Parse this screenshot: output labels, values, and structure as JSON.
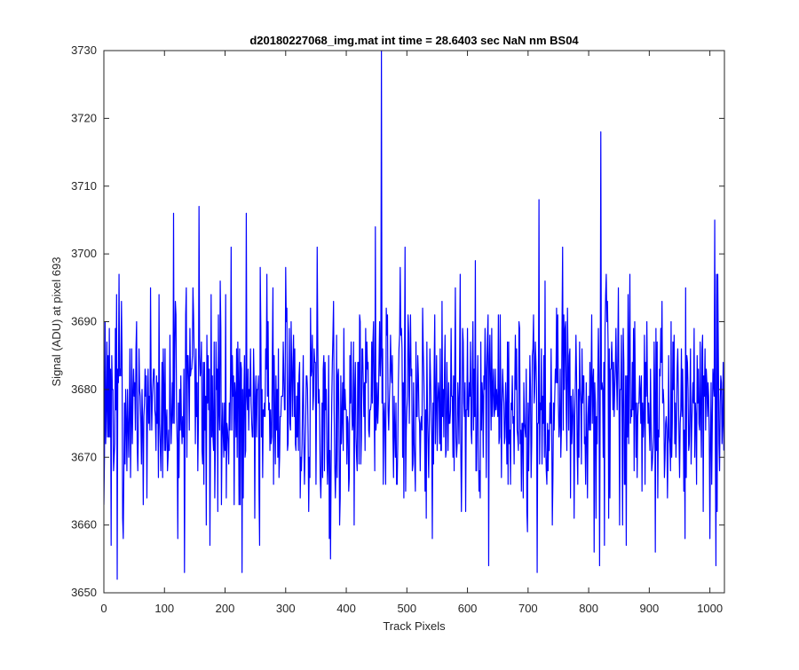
{
  "chart_data": {
    "type": "line",
    "title": "d20180227068_img.mat int time = 28.6403 sec  NaN nm BS04",
    "xlabel": "Track Pixels",
    "ylabel": "Signal (ADU) at pixel 693",
    "xlim": [
      0,
      1024
    ],
    "ylim": [
      3650,
      3730
    ],
    "xticks": [
      0,
      100,
      200,
      300,
      400,
      500,
      600,
      700,
      800,
      900,
      1000
    ],
    "yticks": [
      3650,
      3660,
      3670,
      3680,
      3690,
      3700,
      3710,
      3720,
      3730
    ],
    "grid": false,
    "series": [
      {
        "color": "#0000ff",
        "stats": {
          "n": 1024,
          "mean": 3678,
          "std": 8
        },
        "highlight_points": [
          [
            22,
            3652
          ],
          [
            25,
            3697
          ],
          [
            115,
            3706
          ],
          [
            133,
            3653
          ],
          [
            157,
            3707
          ],
          [
            228,
            3653
          ],
          [
            235,
            3706
          ],
          [
            448,
            3704
          ],
          [
            458,
            3730
          ],
          [
            635,
            3654
          ],
          [
            715,
            3653
          ],
          [
            718,
            3708
          ],
          [
            818,
            3654
          ],
          [
            820,
            3718
          ],
          [
            1008,
            3705
          ],
          [
            1010,
            3654
          ]
        ]
      }
    ]
  }
}
